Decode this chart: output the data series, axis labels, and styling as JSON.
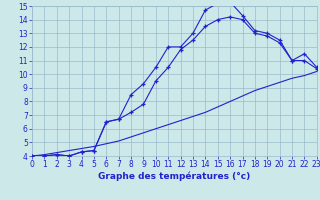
{
  "bg_color": "#cce8e8",
  "line_color": "#2222cc",
  "grid_color": "#99bbcc",
  "xlim": [
    0,
    23
  ],
  "ylim": [
    4,
    15
  ],
  "xticks": [
    0,
    1,
    2,
    3,
    4,
    5,
    6,
    7,
    8,
    9,
    10,
    11,
    12,
    13,
    14,
    15,
    16,
    17,
    18,
    19,
    20,
    21,
    22,
    23
  ],
  "yticks": [
    4,
    5,
    6,
    7,
    8,
    9,
    10,
    11,
    12,
    13,
    14,
    15
  ],
  "xlabel": "Graphe des températures (°c)",
  "line1_x": [
    0,
    1,
    2,
    3,
    4,
    5,
    6,
    7,
    8,
    9,
    10,
    11,
    12,
    13,
    14,
    15,
    16,
    17,
    18,
    19,
    20,
    21,
    22,
    23
  ],
  "line1_y": [
    4.0,
    4.0,
    4.1,
    4.0,
    4.3,
    4.4,
    6.5,
    6.7,
    8.5,
    9.3,
    10.5,
    12.0,
    12.0,
    13.0,
    14.7,
    15.2,
    15.3,
    14.3,
    13.2,
    13.0,
    12.5,
    11.0,
    11.5,
    10.5
  ],
  "line2_x": [
    0,
    1,
    2,
    3,
    4,
    5,
    6,
    7,
    8,
    9,
    10,
    11,
    12,
    13,
    14,
    15,
    16,
    17,
    18,
    19,
    20,
    21,
    22,
    23
  ],
  "line2_y": [
    4.0,
    4.0,
    4.1,
    4.0,
    4.3,
    4.4,
    6.5,
    6.7,
    7.2,
    7.8,
    9.5,
    10.5,
    11.8,
    12.5,
    13.5,
    14.0,
    14.2,
    14.0,
    13.0,
    12.8,
    12.3,
    11.0,
    11.0,
    10.4
  ],
  "line3_x": [
    0,
    1,
    2,
    3,
    4,
    5,
    6,
    7,
    8,
    9,
    10,
    11,
    12,
    13,
    14,
    15,
    16,
    17,
    18,
    19,
    20,
    21,
    22,
    23
  ],
  "line3_y": [
    4.0,
    4.1,
    4.25,
    4.4,
    4.55,
    4.7,
    4.9,
    5.1,
    5.4,
    5.7,
    6.0,
    6.3,
    6.6,
    6.9,
    7.2,
    7.6,
    8.0,
    8.4,
    8.8,
    9.1,
    9.4,
    9.7,
    9.9,
    10.2
  ],
  "tick_fontsize": 5.5,
  "xlabel_fontsize": 6.5
}
